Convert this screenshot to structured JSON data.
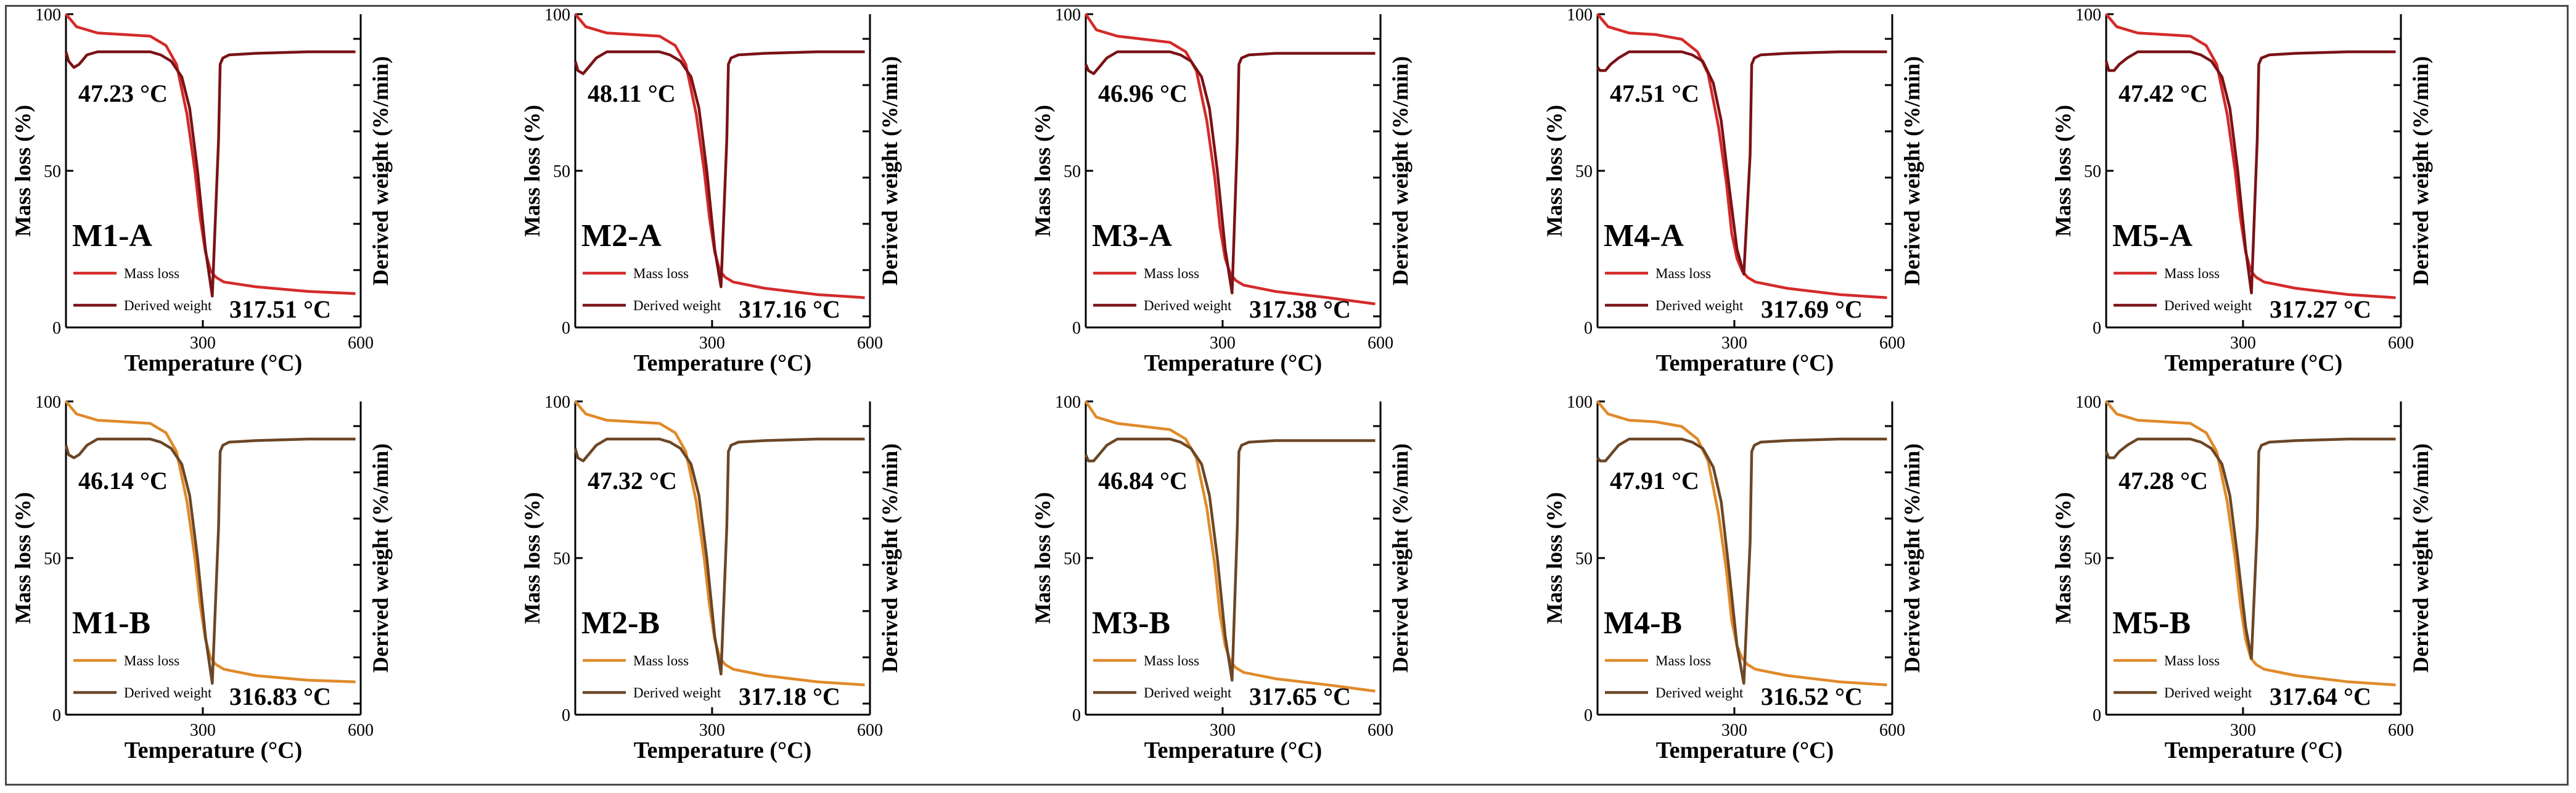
{
  "figure": {
    "colors": {
      "row_a_mass": "#d42a2a",
      "row_a_deriv": "#7a1216",
      "row_b_mass": "#e08a2a",
      "row_b_deriv": "#6b4626",
      "axis": "#000000"
    }
  },
  "chart_data": [
    {
      "type": "line",
      "label": "M1-A",
      "row": "A",
      "xlabel": "Temperature (°C)",
      "ylabel": "Mass loss (%)",
      "y2label": "Derived weight (%/min)",
      "xticks": [
        "300",
        "600"
      ],
      "yticks": [
        "0",
        "50",
        "100"
      ],
      "xlim": [
        40,
        600
      ],
      "ylim": [
        0,
        100
      ],
      "legend": [
        "Mass loss",
        "Derived weight"
      ],
      "peak_low": "47.23 °C",
      "peak_high": "317.51 °C",
      "mass_loss": {
        "x": [
          40,
          60,
          100,
          150,
          200,
          230,
          250,
          270,
          285,
          295,
          305,
          315,
          325,
          340,
          400,
          500,
          590
        ],
        "y": [
          100,
          96,
          94,
          93.5,
          93,
          90,
          84,
          68,
          50,
          35,
          24,
          18,
          16,
          14.5,
          13,
          11.5,
          10.8
        ]
      },
      "derived_weight": {
        "x": [
          40,
          45,
          55,
          65,
          80,
          100,
          150,
          200,
          220,
          240,
          260,
          275,
          290,
          305,
          318,
          330,
          333,
          338,
          350,
          400,
          500,
          590
        ],
        "y": [
          88,
          85,
          83,
          84,
          87,
          88,
          88,
          88,
          87,
          85,
          80,
          70,
          50,
          25,
          10,
          60,
          84,
          86,
          87,
          87.5,
          88,
          88
        ]
      }
    },
    {
      "type": "line",
      "label": "M2-A",
      "row": "A",
      "xlabel": "Temperature (°C)",
      "ylabel": "Mass loss (%)",
      "y2label": "Derived weight (%/min)",
      "xticks": [
        "300",
        "600"
      ],
      "yticks": [
        "0",
        "50",
        "100"
      ],
      "xlim": [
        40,
        600
      ],
      "ylim": [
        0,
        100
      ],
      "legend": [
        "Mass loss",
        "Derived weight"
      ],
      "peak_low": "48.11 °C",
      "peak_high": "317.16 °C",
      "mass_loss": {
        "x": [
          40,
          60,
          100,
          150,
          200,
          230,
          250,
          270,
          285,
          295,
          305,
          315,
          325,
          340,
          400,
          500,
          590
        ],
        "y": [
          100,
          96,
          94,
          93.5,
          93,
          90,
          84,
          68,
          50,
          35,
          24,
          18,
          16,
          14.5,
          12.5,
          10.5,
          9.5
        ]
      },
      "derived_weight": {
        "x": [
          40,
          45,
          55,
          65,
          80,
          100,
          150,
          200,
          220,
          240,
          260,
          275,
          290,
          305,
          317,
          328,
          331,
          336,
          350,
          400,
          500,
          590
        ],
        "y": [
          85,
          82,
          81,
          83,
          86,
          88,
          88,
          88,
          87,
          85,
          80,
          70,
          50,
          25,
          13,
          60,
          84,
          86,
          87,
          87.5,
          88,
          88
        ]
      }
    },
    {
      "type": "line",
      "label": "M3-A",
      "row": "A",
      "xlabel": "Temperature (°C)",
      "ylabel": "Mass loss (%)",
      "y2label": "Derived weight (%/min)",
      "xticks": [
        "300",
        "600"
      ],
      "yticks": [
        "0",
        "50",
        "100"
      ],
      "xlim": [
        40,
        600
      ],
      "ylim": [
        0,
        100
      ],
      "legend": [
        "Mass loss",
        "Derived weight"
      ],
      "peak_low": "46.96 °C",
      "peak_high": "317.38 °C",
      "mass_loss": {
        "x": [
          40,
          60,
          100,
          150,
          200,
          230,
          250,
          270,
          285,
          295,
          305,
          315,
          325,
          340,
          400,
          500,
          590
        ],
        "y": [
          100,
          95,
          93,
          92,
          91,
          88,
          82,
          66,
          48,
          32,
          22,
          17,
          15,
          13.5,
          11.5,
          9.5,
          7.5
        ]
      },
      "derived_weight": {
        "x": [
          40,
          45,
          55,
          65,
          80,
          100,
          150,
          200,
          220,
          240,
          260,
          275,
          290,
          305,
          318,
          328,
          331,
          336,
          350,
          400,
          500,
          590
        ],
        "y": [
          84,
          82,
          81,
          83,
          86,
          88,
          88,
          88,
          87,
          85,
          80,
          70,
          50,
          25,
          11,
          60,
          84,
          86,
          87,
          87.5,
          87.5,
          87.5
        ]
      }
    },
    {
      "type": "line",
      "label": "M4-A",
      "row": "A",
      "xlabel": "Temperature (°C)",
      "ylabel": "Mass loss (%)",
      "y2label": "Derived weight (%/min)",
      "xticks": [
        "300",
        "600"
      ],
      "yticks": [
        "0",
        "50",
        "100"
      ],
      "xlim": [
        40,
        600
      ],
      "ylim": [
        0,
        100
      ],
      "legend": [
        "Mass loss",
        "Derived weight"
      ],
      "peak_low": "47.51 °C",
      "peak_high": "317.69 °C",
      "mass_loss": {
        "x": [
          40,
          60,
          100,
          150,
          200,
          230,
          250,
          270,
          285,
          295,
          305,
          315,
          325,
          340,
          400,
          500,
          590
        ],
        "y": [
          100,
          96,
          94,
          93.5,
          92,
          88,
          81,
          64,
          46,
          30,
          22,
          18,
          16,
          14.5,
          12.5,
          10.5,
          9.5
        ]
      },
      "derived_weight": {
        "x": [
          40,
          45,
          55,
          65,
          80,
          100,
          150,
          200,
          220,
          240,
          260,
          275,
          290,
          305,
          318,
          330,
          333,
          338,
          350,
          400,
          500,
          590
        ],
        "y": [
          83,
          82,
          82,
          84,
          86,
          88,
          88,
          88,
          87,
          85,
          78,
          66,
          45,
          25,
          17,
          55,
          84,
          86,
          87,
          87.5,
          88,
          88
        ]
      }
    },
    {
      "type": "line",
      "label": "M5-A",
      "row": "A",
      "xlabel": "Temperature (°C)",
      "ylabel": "Mass loss (%)",
      "y2label": "Derived weight (%/min)",
      "xticks": [
        "300",
        "600"
      ],
      "yticks": [
        "0",
        "50",
        "100"
      ],
      "xlim": [
        40,
        600
      ],
      "ylim": [
        0,
        100
      ],
      "legend": [
        "Mass loss",
        "Derived weight"
      ],
      "peak_low": "47.42 °C",
      "peak_high": "317.27 °C",
      "mass_loss": {
        "x": [
          40,
          60,
          100,
          150,
          200,
          230,
          250,
          270,
          285,
          295,
          305,
          315,
          325,
          340,
          400,
          500,
          590
        ],
        "y": [
          100,
          96,
          94,
          93.5,
          93,
          90,
          84,
          68,
          50,
          35,
          24,
          18,
          16,
          14.5,
          12.5,
          10.5,
          9.5
        ]
      },
      "derived_weight": {
        "x": [
          40,
          45,
          55,
          65,
          80,
          100,
          150,
          200,
          220,
          240,
          260,
          275,
          290,
          305,
          316,
          327,
          330,
          335,
          350,
          400,
          500,
          590
        ],
        "y": [
          85,
          82,
          82,
          84,
          86,
          88,
          88,
          88,
          87,
          85,
          80,
          70,
          50,
          25,
          11,
          60,
          84,
          86,
          87,
          87.5,
          88,
          88
        ]
      }
    },
    {
      "type": "line",
      "label": "M1-B",
      "row": "B",
      "xlabel": "Temperature (°C)",
      "ylabel": "Mass loss (%)",
      "y2label": "Derived weight (%/min)",
      "xticks": [
        "300",
        "600"
      ],
      "yticks": [
        "0",
        "50",
        "100"
      ],
      "xlim": [
        40,
        600
      ],
      "ylim": [
        0,
        100
      ],
      "legend": [
        "Mass loss",
        "Derived weight"
      ],
      "peak_low": "46.14 °C",
      "peak_high": "316.83 °C",
      "mass_loss": {
        "x": [
          40,
          60,
          100,
          150,
          200,
          230,
          250,
          270,
          285,
          295,
          305,
          315,
          325,
          340,
          400,
          500,
          590
        ],
        "y": [
          100,
          96,
          94,
          93.5,
          93,
          90,
          84,
          68,
          50,
          35,
          24,
          18,
          16,
          14.5,
          12.5,
          11,
          10.5
        ]
      },
      "derived_weight": {
        "x": [
          40,
          45,
          55,
          65,
          80,
          100,
          150,
          200,
          220,
          240,
          260,
          275,
          290,
          305,
          318,
          330,
          333,
          338,
          350,
          400,
          500,
          590
        ],
        "y": [
          86,
          83,
          82,
          83,
          86,
          88,
          88,
          88,
          87,
          85,
          80,
          70,
          50,
          25,
          10,
          60,
          84,
          86,
          87,
          87.5,
          88,
          88
        ]
      }
    },
    {
      "type": "line",
      "label": "M2-B",
      "row": "B",
      "xlabel": "Temperature (°C)",
      "ylabel": "Mass loss (%)",
      "y2label": "Derived weight (%/min)",
      "xticks": [
        "300",
        "600"
      ],
      "yticks": [
        "0",
        "50",
        "100"
      ],
      "xlim": [
        40,
        600
      ],
      "ylim": [
        0,
        100
      ],
      "legend": [
        "Mass loss",
        "Derived weight"
      ],
      "peak_low": "47.32 °C",
      "peak_high": "317.18 °C",
      "mass_loss": {
        "x": [
          40,
          60,
          100,
          150,
          200,
          230,
          250,
          270,
          285,
          295,
          305,
          315,
          325,
          340,
          400,
          500,
          590
        ],
        "y": [
          100,
          96,
          94,
          93.5,
          93,
          90,
          84,
          68,
          50,
          35,
          24,
          18,
          16,
          14.5,
          12.5,
          10.5,
          9.5
        ]
      },
      "derived_weight": {
        "x": [
          40,
          45,
          55,
          65,
          80,
          100,
          150,
          200,
          220,
          240,
          260,
          275,
          290,
          305,
          317,
          328,
          331,
          336,
          350,
          400,
          500,
          590
        ],
        "y": [
          85,
          82,
          81,
          83,
          86,
          88,
          88,
          88,
          87,
          85,
          80,
          70,
          50,
          25,
          13,
          60,
          84,
          86,
          87,
          87.5,
          88,
          88
        ]
      }
    },
    {
      "type": "line",
      "label": "M3-B",
      "row": "B",
      "xlabel": "Temperature (°C)",
      "ylabel": "Mass loss (%)",
      "y2label": "Derived weight (%/min)",
      "xticks": [
        "300",
        "600"
      ],
      "yticks": [
        "0",
        "50",
        "100"
      ],
      "xlim": [
        40,
        600
      ],
      "ylim": [
        0,
        100
      ],
      "legend": [
        "Mass loss",
        "Derived weight"
      ],
      "peak_low": "46.84 °C",
      "peak_high": "317.65 °C",
      "mass_loss": {
        "x": [
          40,
          60,
          100,
          150,
          200,
          230,
          250,
          270,
          285,
          295,
          305,
          315,
          325,
          340,
          400,
          500,
          590
        ],
        "y": [
          100,
          95,
          93,
          92,
          91,
          88,
          82,
          66,
          48,
          32,
          22,
          17,
          15,
          13.5,
          11.5,
          9.5,
          7.5
        ]
      },
      "derived_weight": {
        "x": [
          40,
          45,
          55,
          65,
          80,
          100,
          150,
          200,
          220,
          240,
          260,
          275,
          290,
          305,
          318,
          328,
          331,
          336,
          350,
          400,
          500,
          590
        ],
        "y": [
          83,
          81,
          81,
          83,
          86,
          88,
          88,
          88,
          87,
          85,
          80,
          70,
          50,
          25,
          11,
          60,
          84,
          86,
          87,
          87.5,
          87.5,
          87.5
        ]
      }
    },
    {
      "type": "line",
      "label": "M4-B",
      "row": "B",
      "xlabel": "Temperature (°C)",
      "ylabel": "Mass loss (%)",
      "y2label": "Derived weight (%/min)",
      "xticks": [
        "300",
        "600"
      ],
      "yticks": [
        "0",
        "50",
        "100"
      ],
      "xlim": [
        40,
        600
      ],
      "ylim": [
        0,
        100
      ],
      "legend": [
        "Mass loss",
        "Derived weight"
      ],
      "peak_low": "47.91 °C",
      "peak_high": "316.52 °C",
      "mass_loss": {
        "x": [
          40,
          60,
          100,
          150,
          200,
          230,
          250,
          270,
          285,
          295,
          305,
          315,
          325,
          340,
          400,
          500,
          590
        ],
        "y": [
          100,
          96,
          94,
          93.5,
          92,
          88,
          81,
          64,
          46,
          30,
          22,
          18,
          16,
          14.5,
          12.5,
          10.5,
          9.5
        ]
      },
      "derived_weight": {
        "x": [
          40,
          45,
          55,
          65,
          80,
          100,
          150,
          200,
          220,
          240,
          260,
          275,
          290,
          305,
          318,
          330,
          333,
          338,
          350,
          400,
          500,
          590
        ],
        "y": [
          82,
          81,
          81,
          83,
          86,
          88,
          88,
          88,
          87,
          85,
          79,
          68,
          46,
          22,
          10,
          55,
          84,
          86,
          87,
          87.5,
          88,
          88
        ]
      }
    },
    {
      "type": "line",
      "label": "M5-B",
      "row": "B",
      "xlabel": "Temperature (°C)",
      "ylabel": "Mass loss (%)",
      "y2label": "Derived weight (%/min)",
      "xticks": [
        "300",
        "600"
      ],
      "yticks": [
        "0",
        "50",
        "100"
      ],
      "xlim": [
        40,
        600
      ],
      "ylim": [
        0,
        100
      ],
      "legend": [
        "Mass loss",
        "Derived weight"
      ],
      "peak_low": "47.28 °C",
      "peak_high": "317.64 °C",
      "mass_loss": {
        "x": [
          40,
          60,
          100,
          150,
          200,
          230,
          250,
          270,
          285,
          295,
          305,
          315,
          325,
          340,
          400,
          500,
          590
        ],
        "y": [
          100,
          96,
          94,
          93.5,
          93,
          90,
          84,
          68,
          50,
          35,
          24,
          18,
          16,
          14.5,
          12.5,
          10.5,
          9.5
        ]
      },
      "derived_weight": {
        "x": [
          40,
          45,
          55,
          65,
          80,
          100,
          150,
          200,
          220,
          240,
          260,
          275,
          290,
          305,
          316,
          327,
          330,
          335,
          350,
          400,
          500,
          590
        ],
        "y": [
          84,
          82,
          82,
          84,
          86,
          88,
          88,
          88,
          87,
          85,
          80,
          70,
          50,
          28,
          18,
          60,
          84,
          86,
          87,
          87.5,
          88,
          88
        ]
      }
    }
  ]
}
